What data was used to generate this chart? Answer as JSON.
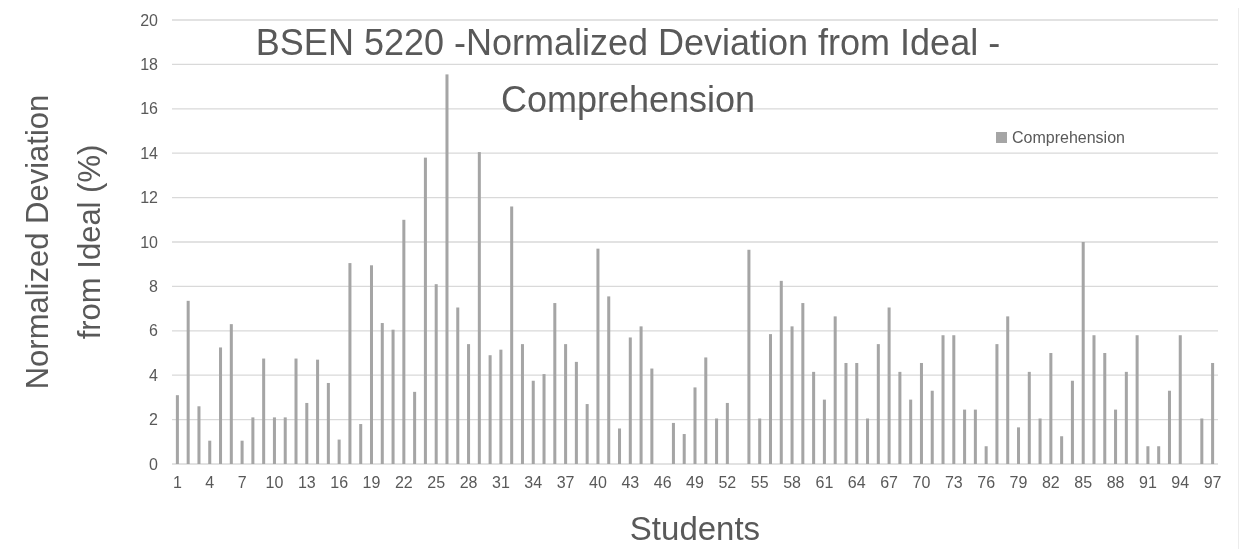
{
  "chart_data": {
    "type": "bar",
    "title": "BSEN 5220 -Normalized Deviation from Ideal - Comprehension",
    "xlabel": "Students",
    "ylabel": "Normalized Deviation from Ideal (%)",
    "categories": [
      "1",
      null,
      null,
      "4",
      null,
      null,
      "7",
      null,
      null,
      "10",
      null,
      null,
      "13",
      null,
      null,
      "16",
      null,
      null,
      "19",
      null,
      null,
      "22",
      null,
      null,
      "25",
      null,
      null,
      "28",
      null,
      null,
      "31",
      null,
      null,
      "34",
      null,
      null,
      "37",
      null,
      null,
      "40",
      null,
      null,
      "43",
      null,
      null,
      "46",
      null,
      null,
      "49",
      null,
      null,
      "52",
      null,
      null,
      "55",
      null,
      null,
      "58",
      null,
      null,
      "61",
      null,
      null,
      "64",
      null,
      null,
      "67",
      null,
      null,
      "70",
      null,
      null,
      "73",
      null,
      null,
      "76",
      null,
      null,
      "79",
      null,
      null,
      "82",
      null,
      null,
      "85",
      null,
      null,
      "88",
      null,
      null,
      "91",
      null,
      null,
      "94",
      null,
      null,
      "97"
    ],
    "series": [
      {
        "name": "Comprehension",
        "color": "#a5a5a5",
        "values": [
          3.1,
          7.35,
          2.6,
          1.05,
          5.25,
          6.3,
          1.05,
          2.1,
          4.75,
          2.1,
          2.1,
          4.75,
          2.75,
          4.7,
          3.65,
          1.1,
          9.05,
          1.8,
          8.95,
          6.35,
          6.05,
          11,
          3.25,
          13.8,
          8.1,
          17.55,
          7.05,
          5.4,
          14.05,
          4.9,
          5.15,
          11.6,
          5.4,
          3.75,
          4.05,
          7.25,
          5.4,
          4.6,
          2.7,
          9.7,
          7.55,
          1.6,
          5.7,
          6.2,
          4.3,
          null,
          1.85,
          1.35,
          3.45,
          4.8,
          2.05,
          2.75,
          null,
          9.65,
          2.05,
          5.85,
          8.25,
          6.2,
          7.25,
          4.15,
          2.9,
          6.65,
          4.55,
          4.55,
          2.05,
          5.4,
          7.05,
          4.15,
          2.9,
          4.55,
          3.3,
          5.8,
          5.8,
          2.45,
          2.45,
          0.8,
          5.4,
          6.65,
          1.65,
          4.15,
          2.05,
          5.0,
          1.25,
          3.75,
          10,
          5.8,
          5.0,
          2.45,
          4.15,
          5.8,
          0.8,
          0.8,
          3.3,
          5.8,
          null,
          2.05,
          4.55
        ]
      }
    ],
    "ylim": [
      0,
      20
    ],
    "yticks": [
      0,
      2,
      4,
      6,
      8,
      10,
      12,
      14,
      16,
      18,
      20
    ],
    "grid": "y",
    "legend": "top right"
  }
}
